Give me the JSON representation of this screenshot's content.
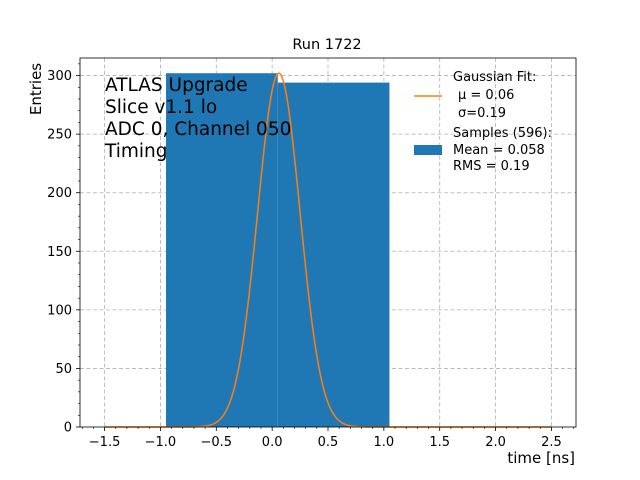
{
  "chart_data": {
    "type": "bar",
    "title": "Run 1722",
    "xlabel": "time [ns]",
    "ylabel": "Entries",
    "xlim": [
      -1.72,
      2.72
    ],
    "ylim": [
      0,
      315
    ],
    "xticks": [
      -1.5,
      -1.0,
      -0.5,
      0.0,
      0.5,
      1.0,
      1.5,
      2.0,
      2.5
    ],
    "xtick_labels": [
      "−1.5",
      "−1.0",
      "−0.5",
      "0.0",
      "0.5",
      "1.0",
      "1.5",
      "2.0",
      "2.5"
    ],
    "yticks": [
      0,
      50,
      100,
      150,
      200,
      250,
      300
    ],
    "ytick_labels": [
      "0",
      "50",
      "100",
      "150",
      "200",
      "250",
      "300"
    ],
    "y_minor_step": 10,
    "grid": true,
    "histogram": {
      "name": "Samples (596):",
      "color": "#1f77b4",
      "bins": [
        {
          "x0": -0.95,
          "x1": 0.05,
          "count": 302
        },
        {
          "x0": 0.05,
          "x1": 1.05,
          "count": 294
        }
      ]
    },
    "fit": {
      "name": "Gaussian Fit:",
      "color": "#ff7f0e",
      "mu": 0.06,
      "sigma": 0.19,
      "amplitude": 302,
      "x_range": [
        -1.5,
        2.5
      ]
    },
    "annotations": [
      "ATLAS Upgrade",
      "Slice v1.1 lo",
      "ADC 0, Channel 050",
      "Timing"
    ],
    "legend": {
      "position": "top-right",
      "fit_lines": [
        "Gaussian Fit:",
        "μ = 0.06",
        "σ=0.19"
      ],
      "samples_lines": [
        "Samples (596):",
        " Mean = 0.058",
        " RMS = 0.19"
      ]
    }
  }
}
